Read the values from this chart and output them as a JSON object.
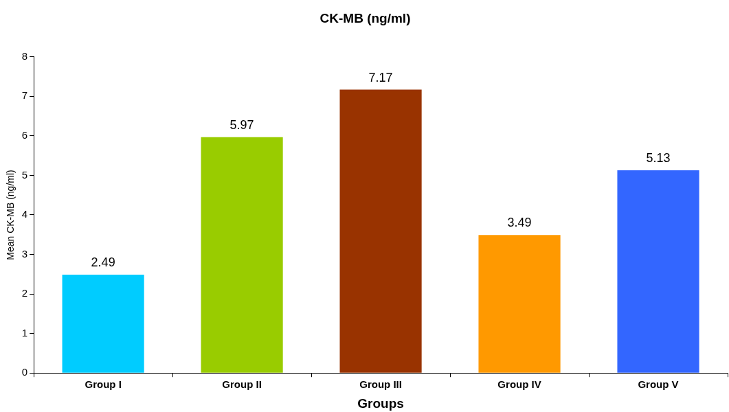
{
  "chart_data": {
    "type": "bar",
    "title": "CK-MB (ng/ml)",
    "xlabel": "Groups",
    "ylabel": "Mean CK-MB (ng/ml)",
    "categories": [
      "Group I",
      "Group II",
      "Group III",
      "Group IV",
      "Group V"
    ],
    "values": [
      2.49,
      5.97,
      7.17,
      3.49,
      5.13
    ],
    "colors": [
      "#00ccff",
      "#99cc00",
      "#993300",
      "#ff9900",
      "#3366ff"
    ],
    "ylim": [
      0,
      8
    ],
    "yticks": [
      0,
      1,
      2,
      3,
      4,
      5,
      6,
      7,
      8
    ],
    "grid": false,
    "legend": false,
    "data_labels": true
  }
}
